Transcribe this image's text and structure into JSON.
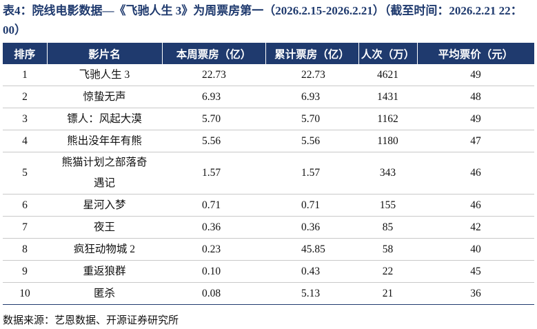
{
  "title": "表4：院线电影数据—《飞驰人生 3》为周票房第一（2026.2.15-2026.2.21）（截至时间：2026.2.21 22：00）",
  "table": {
    "header": [
      "排序",
      "影片名",
      "本周票房（亿）",
      "累计票房（亿）",
      "人次（万）",
      "平均票价（元）"
    ],
    "rows": [
      [
        "1",
        "飞驰人生 3",
        "22.73",
        "22.73",
        "4621",
        "49"
      ],
      [
        "2",
        "惊蛰无声",
        "6.93",
        "6.93",
        "1431",
        "48"
      ],
      [
        "3",
        "镖人：风起大漠",
        "5.70",
        "5.70",
        "1162",
        "49"
      ],
      [
        "4",
        "熊出没年年有熊",
        "5.56",
        "5.56",
        "1180",
        "47"
      ],
      [
        "5",
        "熊猫计划之部落奇遇记",
        "1.57",
        "1.57",
        "343",
        "46"
      ],
      [
        "6",
        "星河入梦",
        "0.71",
        "0.71",
        "155",
        "46"
      ],
      [
        "7",
        "夜王",
        "0.36",
        "0.36",
        "85",
        "42"
      ],
      [
        "8",
        "疯狂动物城 2",
        "0.23",
        "45.85",
        "58",
        "40"
      ],
      [
        "9",
        "重返狼群",
        "0.10",
        "0.43",
        "22",
        "45"
      ],
      [
        "10",
        "匿杀",
        "0.08",
        "5.13",
        "21",
        "36"
      ]
    ]
  },
  "source": "数据来源：艺恩数据、开源证券研究所"
}
